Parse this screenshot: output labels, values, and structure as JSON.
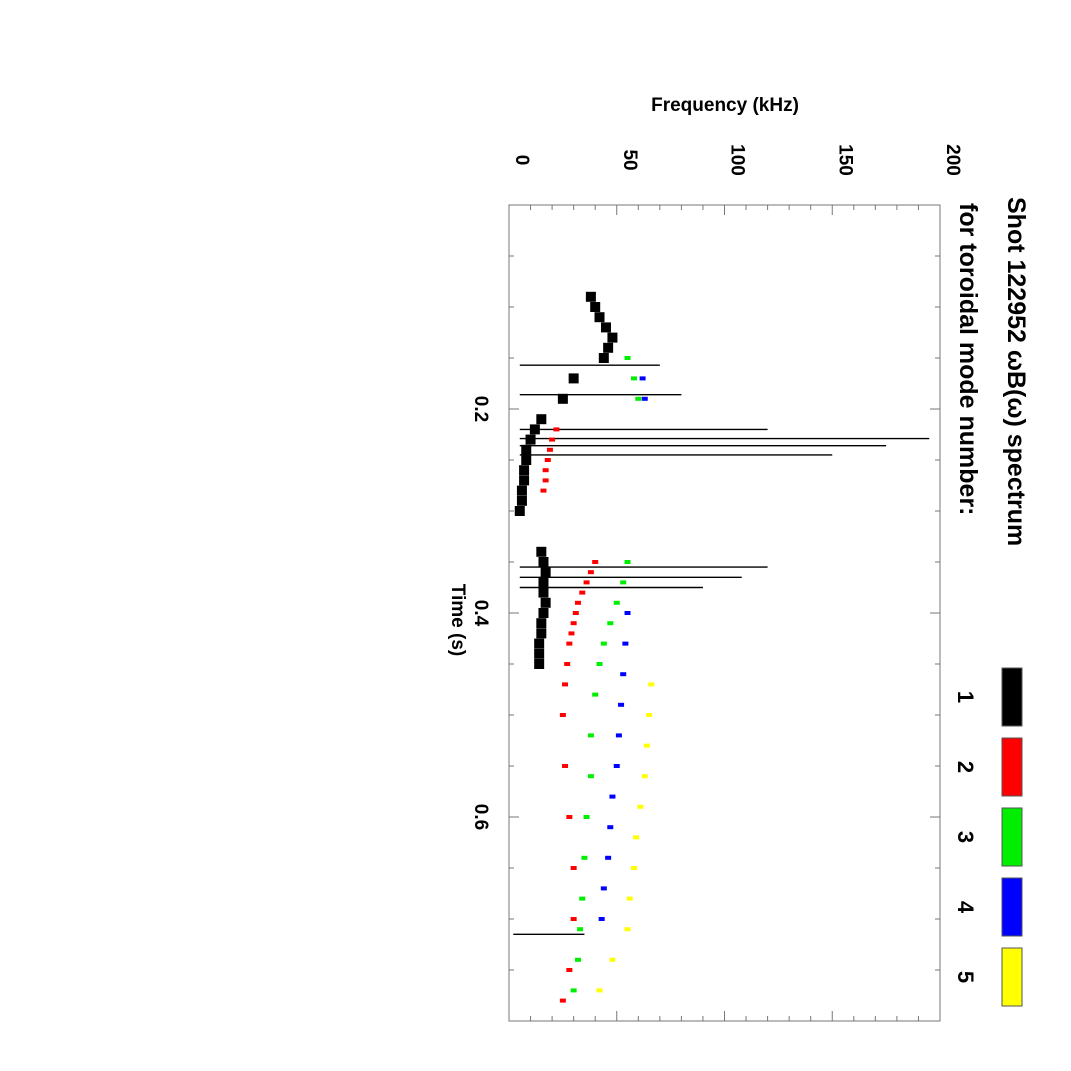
{
  "chart_data": {
    "type": "scatter",
    "orientation": "rotated-90-clockwise",
    "title_line1": "Shot 122952 ωB(ω) spectrum",
    "title_line2": "for toroidal mode number:",
    "xlabel": "Time (s)",
    "ylabel": "Frequency (kHz)",
    "xlim": [
      0.0,
      0.8
    ],
    "ylim": [
      0,
      200
    ],
    "x_ticks_major": [
      {
        "value": 0.2,
        "label": "0.2"
      },
      {
        "value": 0.4,
        "label": "0.4"
      },
      {
        "value": 0.6,
        "label": "0.6"
      }
    ],
    "y_ticks_major": [
      {
        "value": 0,
        "label": "0"
      },
      {
        "value": 50,
        "label": "50"
      },
      {
        "value": 100,
        "label": "100"
      },
      {
        "value": 150,
        "label": "150"
      },
      {
        "value": 200,
        "label": "200"
      }
    ],
    "legend": [
      {
        "label": "1",
        "color": "#000000"
      },
      {
        "label": "2",
        "color": "#ff0000"
      },
      {
        "label": "3",
        "color": "#00ee00"
      },
      {
        "label": "4",
        "color": "#0000ff"
      },
      {
        "label": "5",
        "color": "#ffff00"
      }
    ],
    "series": [
      {
        "name": "1",
        "color": "#000000",
        "points": [
          [
            0.09,
            38
          ],
          [
            0.1,
            40
          ],
          [
            0.11,
            42
          ],
          [
            0.12,
            45
          ],
          [
            0.13,
            48
          ],
          [
            0.14,
            46
          ],
          [
            0.15,
            44
          ],
          [
            0.17,
            30
          ],
          [
            0.19,
            25
          ],
          [
            0.21,
            15
          ],
          [
            0.22,
            12
          ],
          [
            0.23,
            10
          ],
          [
            0.24,
            8
          ],
          [
            0.25,
            8
          ],
          [
            0.26,
            7
          ],
          [
            0.27,
            7
          ],
          [
            0.28,
            6
          ],
          [
            0.29,
            6
          ],
          [
            0.3,
            5
          ],
          [
            0.34,
            15
          ],
          [
            0.35,
            16
          ],
          [
            0.36,
            17
          ],
          [
            0.37,
            16
          ],
          [
            0.38,
            16
          ],
          [
            0.39,
            17
          ],
          [
            0.4,
            16
          ],
          [
            0.41,
            15
          ],
          [
            0.42,
            15
          ],
          [
            0.43,
            14
          ],
          [
            0.44,
            14
          ],
          [
            0.45,
            14
          ]
        ],
        "bursts": [
          {
            "time": 0.229,
            "fmin": 5,
            "fmax": 195
          },
          {
            "time": 0.236,
            "fmin": 5,
            "fmax": 175
          },
          {
            "time": 0.245,
            "fmin": 5,
            "fmax": 150
          },
          {
            "time": 0.22,
            "fmin": 5,
            "fmax": 120
          },
          {
            "time": 0.186,
            "fmin": 5,
            "fmax": 80
          },
          {
            "time": 0.157,
            "fmin": 5,
            "fmax": 70
          },
          {
            "time": 0.355,
            "fmin": 5,
            "fmax": 120
          },
          {
            "time": 0.365,
            "fmin": 5,
            "fmax": 108
          },
          {
            "time": 0.375,
            "fmin": 5,
            "fmax": 90
          },
          {
            "time": 0.715,
            "fmin": 2,
            "fmax": 35
          }
        ]
      },
      {
        "name": "2",
        "color": "#ff0000",
        "points": [
          [
            0.22,
            22
          ],
          [
            0.23,
            20
          ],
          [
            0.24,
            19
          ],
          [
            0.25,
            18
          ],
          [
            0.26,
            17
          ],
          [
            0.27,
            17
          ],
          [
            0.28,
            16
          ],
          [
            0.35,
            40
          ],
          [
            0.36,
            38
          ],
          [
            0.37,
            36
          ],
          [
            0.38,
            34
          ],
          [
            0.39,
            32
          ],
          [
            0.4,
            31
          ],
          [
            0.41,
            30
          ],
          [
            0.42,
            29
          ],
          [
            0.43,
            28
          ],
          [
            0.45,
            27
          ],
          [
            0.47,
            26
          ],
          [
            0.5,
            25
          ],
          [
            0.55,
            26
          ],
          [
            0.6,
            28
          ],
          [
            0.65,
            30
          ],
          [
            0.7,
            30
          ],
          [
            0.75,
            28
          ],
          [
            0.78,
            25
          ]
        ]
      },
      {
        "name": "3",
        "color": "#00ee00",
        "points": [
          [
            0.15,
            55
          ],
          [
            0.17,
            58
          ],
          [
            0.19,
            60
          ],
          [
            0.35,
            55
          ],
          [
            0.37,
            53
          ],
          [
            0.39,
            50
          ],
          [
            0.41,
            47
          ],
          [
            0.43,
            44
          ],
          [
            0.45,
            42
          ],
          [
            0.48,
            40
          ],
          [
            0.52,
            38
          ],
          [
            0.56,
            38
          ],
          [
            0.6,
            36
          ],
          [
            0.64,
            35
          ],
          [
            0.68,
            34
          ],
          [
            0.71,
            33
          ],
          [
            0.74,
            32
          ],
          [
            0.77,
            30
          ]
        ]
      },
      {
        "name": "4",
        "color": "#0000ff",
        "points": [
          [
            0.17,
            62
          ],
          [
            0.19,
            63
          ],
          [
            0.4,
            55
          ],
          [
            0.43,
            54
          ],
          [
            0.46,
            53
          ],
          [
            0.49,
            52
          ],
          [
            0.52,
            51
          ],
          [
            0.55,
            50
          ],
          [
            0.58,
            48
          ],
          [
            0.61,
            47
          ],
          [
            0.64,
            46
          ],
          [
            0.67,
            44
          ],
          [
            0.7,
            43
          ]
        ]
      },
      {
        "name": "5",
        "color": "#ffff00",
        "points": [
          [
            0.47,
            66
          ],
          [
            0.5,
            65
          ],
          [
            0.53,
            64
          ],
          [
            0.56,
            63
          ],
          [
            0.59,
            61
          ],
          [
            0.62,
            59
          ],
          [
            0.65,
            58
          ],
          [
            0.68,
            56
          ],
          [
            0.71,
            55
          ],
          [
            0.74,
            48
          ],
          [
            0.77,
            42
          ]
        ]
      }
    ]
  }
}
